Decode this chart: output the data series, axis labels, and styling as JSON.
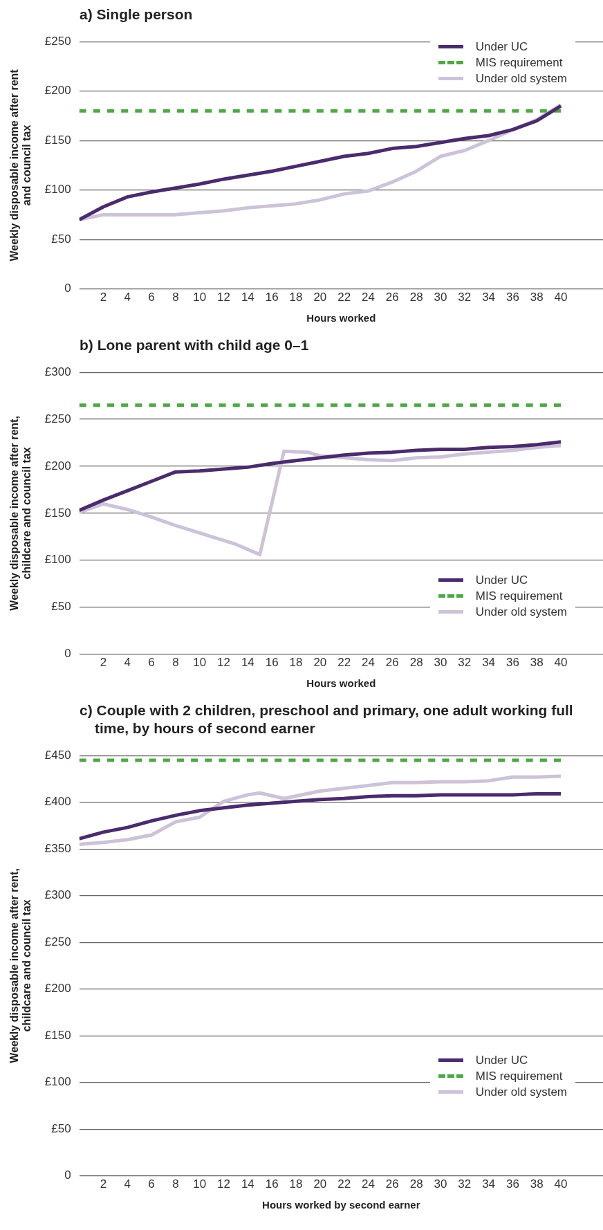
{
  "chart_data": [
    {
      "type": "line",
      "title": "a) Single person",
      "xlabel": "Hours worked",
      "ylabel": "Weekly disposable income after rent and council tax",
      "xlim": [
        0,
        43.5
      ],
      "xticks": [
        2,
        4,
        6,
        8,
        10,
        12,
        14,
        16,
        18,
        20,
        22,
        24,
        26,
        28,
        30,
        32,
        34,
        36,
        38,
        40
      ],
      "ylim": [
        0,
        250
      ],
      "yticks": [
        {
          "value": 0,
          "label": "0"
        },
        {
          "value": 50,
          "label": "£50"
        },
        {
          "value": 100,
          "label": "£100"
        },
        {
          "value": 150,
          "label": "£150"
        },
        {
          "value": 200,
          "label": "£200"
        },
        {
          "value": 250,
          "label": "£250"
        }
      ],
      "grid": "y",
      "legend": "top right",
      "series": [
        {
          "name": "Under UC",
          "color": "#4a2c6d",
          "line_style": "solid",
          "x": [
            0,
            2,
            4,
            6,
            8,
            10,
            12,
            14,
            16,
            18,
            20,
            22,
            24,
            26,
            28,
            30,
            32,
            34,
            36,
            38,
            40
          ],
          "values": [
            70,
            83,
            93,
            98,
            102,
            106,
            111,
            115,
            119,
            124,
            129,
            134,
            137,
            142,
            144,
            148,
            152,
            155,
            161,
            170,
            185
          ]
        },
        {
          "name": "MIS requirement",
          "color": "#4fa845",
          "line_style": "dashed",
          "x": [
            0,
            40
          ],
          "values": [
            180,
            180
          ]
        },
        {
          "name": "Under old system",
          "color": "#cdc3d9",
          "line_style": "solid",
          "x": [
            0,
            2,
            4,
            6,
            8,
            10,
            12,
            14,
            16,
            18,
            20,
            22,
            24,
            26,
            28,
            30,
            32,
            34,
            36,
            38,
            40
          ],
          "values": [
            70,
            75,
            75,
            75,
            75,
            77,
            79,
            82,
            84,
            86,
            90,
            96,
            99,
            108,
            119,
            134,
            140,
            150,
            161,
            171,
            186
          ]
        }
      ]
    },
    {
      "type": "line",
      "title": "b) Lone parent with child age 0–1",
      "xlabel": "Hours worked",
      "ylabel": "Weekly disposable income after rent, childcare and council tax",
      "xlim": [
        0,
        43.5
      ],
      "xticks": [
        2,
        4,
        6,
        8,
        10,
        12,
        14,
        16,
        18,
        20,
        22,
        24,
        26,
        28,
        30,
        32,
        34,
        36,
        38,
        40
      ],
      "ylim": [
        0,
        300
      ],
      "yticks": [
        {
          "value": 0,
          "label": "0"
        },
        {
          "value": 50,
          "label": "£50"
        },
        {
          "value": 100,
          "label": "£100"
        },
        {
          "value": 150,
          "label": "£150"
        },
        {
          "value": 200,
          "label": "£200"
        },
        {
          "value": 250,
          "label": "£250"
        },
        {
          "value": 300,
          "label": "£300"
        }
      ],
      "grid": "y",
      "legend": "bottom right",
      "series": [
        {
          "name": "Under UC",
          "color": "#4a2c6d",
          "line_style": "solid",
          "x": [
            0,
            2,
            4,
            6,
            8,
            10,
            12,
            14,
            16,
            18,
            20,
            22,
            24,
            26,
            28,
            30,
            32,
            34,
            36,
            38,
            40
          ],
          "values": [
            153,
            164,
            174,
            184,
            194,
            195,
            197,
            199,
            203,
            206,
            209,
            212,
            214,
            215,
            217,
            218,
            218,
            220,
            221,
            223,
            226
          ]
        },
        {
          "name": "MIS requirement",
          "color": "#4fa845",
          "line_style": "dashed",
          "x": [
            0,
            40
          ],
          "values": [
            265,
            265
          ]
        },
        {
          "name": "Under old system",
          "color": "#cdc3d9",
          "line_style": "solid",
          "x": [
            0,
            2,
            4,
            6,
            8,
            10,
            11,
            13,
            15,
            17,
            19,
            20,
            22,
            24,
            26,
            28,
            30,
            32,
            34,
            36,
            38,
            40
          ],
          "values": [
            151,
            160,
            154,
            146,
            137,
            129,
            125,
            117,
            106,
            216,
            215,
            211,
            209,
            207,
            206,
            209,
            210,
            213,
            215,
            217,
            220,
            222
          ]
        }
      ]
    },
    {
      "type": "line",
      "title": "c) Couple with 2 children, preschool and primary, one adult working full time, by hours of second earner",
      "xlabel": "Hours worked by second earner",
      "ylabel": "Weekly disposable income after rent, childcare and council tax",
      "xlim": [
        0,
        43.5
      ],
      "xticks": [
        2,
        4,
        6,
        8,
        10,
        12,
        14,
        16,
        18,
        20,
        22,
        24,
        26,
        28,
        30,
        32,
        34,
        36,
        38,
        40
      ],
      "ylim": [
        0,
        450
      ],
      "yticks": [
        {
          "value": 0,
          "label": "0"
        },
        {
          "value": 50,
          "label": "£50"
        },
        {
          "value": 100,
          "label": "£100"
        },
        {
          "value": 150,
          "label": "£150"
        },
        {
          "value": 200,
          "label": "£200"
        },
        {
          "value": 250,
          "label": "£250"
        },
        {
          "value": 300,
          "label": "£300"
        },
        {
          "value": 350,
          "label": "£350"
        },
        {
          "value": 400,
          "label": "£400"
        },
        {
          "value": 450,
          "label": "£450"
        }
      ],
      "grid": "y",
      "legend": "bottom right",
      "series": [
        {
          "name": "Under UC",
          "color": "#4a2c6d",
          "line_style": "solid",
          "x": [
            0,
            2,
            4,
            6,
            8,
            10,
            12,
            14,
            16,
            18,
            20,
            22,
            24,
            26,
            28,
            30,
            32,
            34,
            36,
            38,
            40
          ],
          "values": [
            361,
            368,
            373,
            380,
            386,
            391,
            394,
            397,
            399,
            401,
            403,
            404,
            406,
            407,
            407,
            408,
            408,
            408,
            408,
            409,
            409
          ]
        },
        {
          "name": "MIS requirement",
          "color": "#4fa845",
          "line_style": "dashed",
          "x": [
            0,
            40
          ],
          "values": [
            445,
            445
          ]
        },
        {
          "name": "Under old system",
          "color": "#cdc3d9",
          "line_style": "solid",
          "x": [
            0,
            2,
            4,
            6,
            8,
            10,
            12,
            14,
            15,
            17,
            20,
            22,
            24,
            26,
            28,
            30,
            32,
            34,
            36,
            38,
            40
          ],
          "values": [
            355,
            357,
            360,
            365,
            379,
            384,
            401,
            408,
            410,
            404,
            412,
            415,
            418,
            421,
            421,
            422,
            422,
            423,
            427,
            427,
            428
          ]
        }
      ]
    }
  ]
}
